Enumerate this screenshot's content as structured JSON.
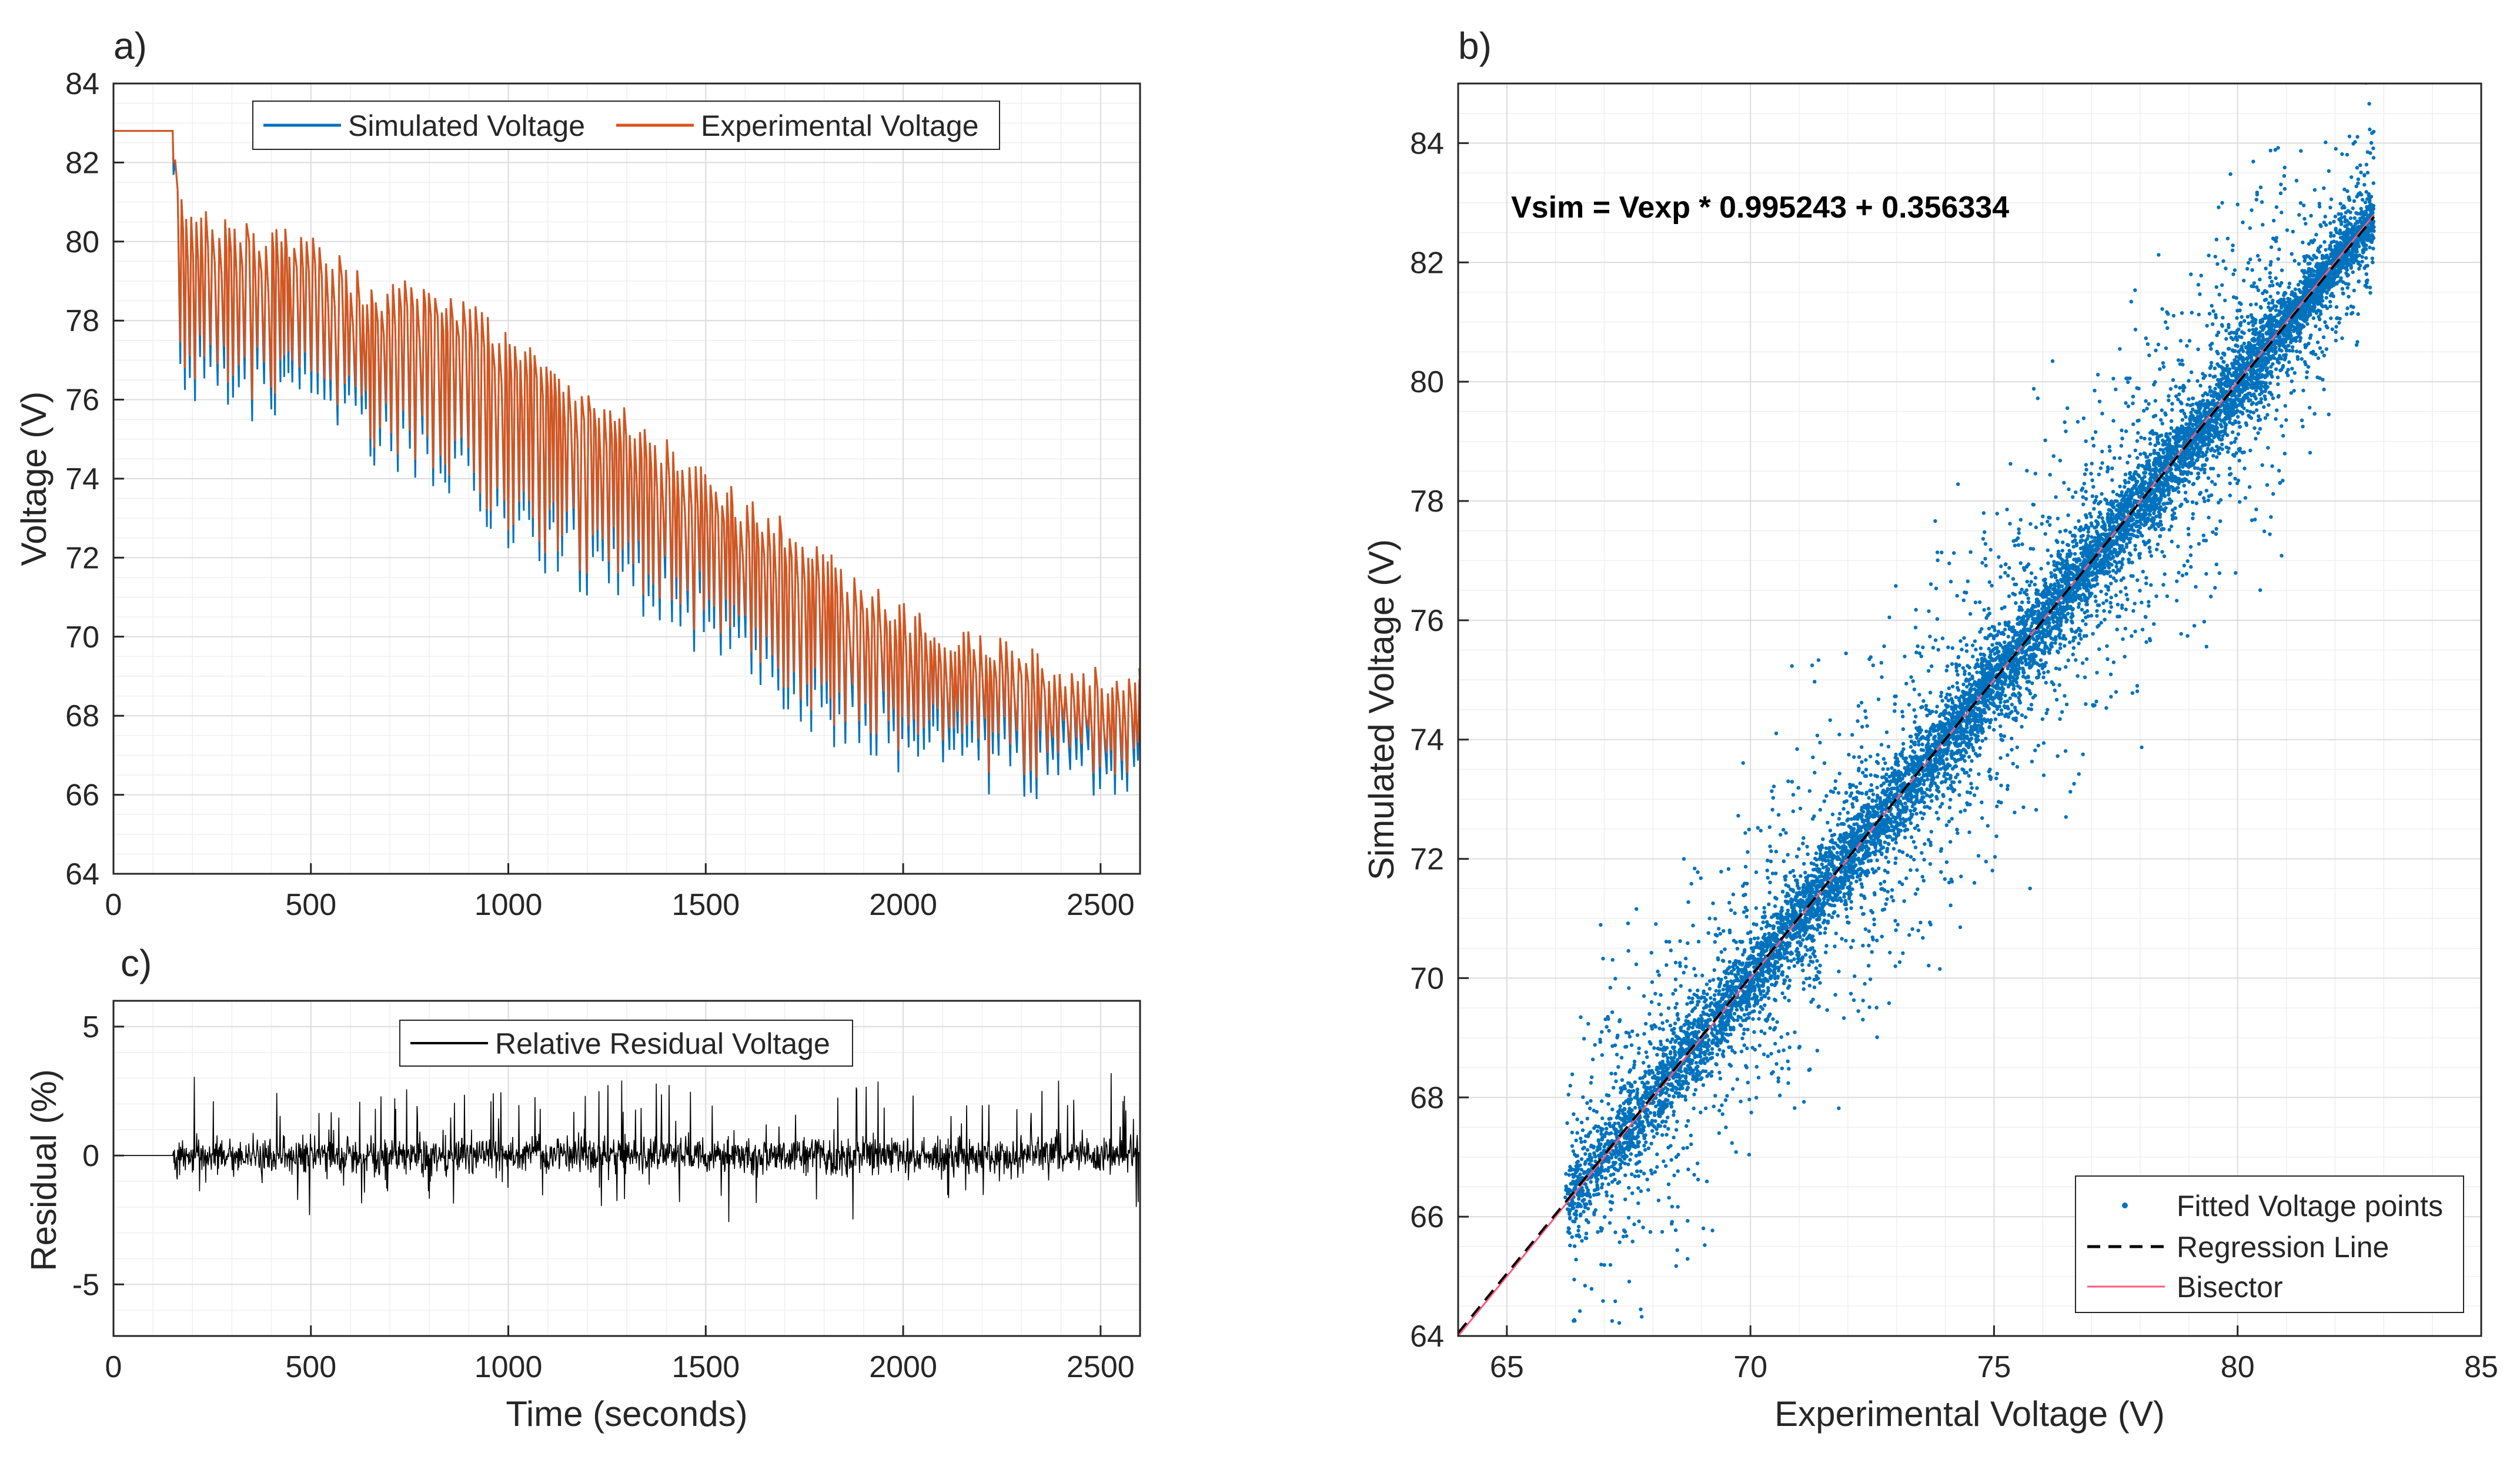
{
  "colors": {
    "simulated": "#0072BD",
    "experimental": "#D95319",
    "residual": "#000000",
    "scatter": "#0072BD",
    "regression": "#000000",
    "bisector": "#FF5A7A",
    "grid_major": "#dcdcdc",
    "grid_minor": "#efefef",
    "axis": "#262626"
  },
  "chart_data": [
    {
      "id": "a",
      "panel_label": "a)",
      "type": "line",
      "xlabel": "",
      "ylabel": "Voltage (V)",
      "xlim": [
        0,
        2600
      ],
      "ylim": [
        64,
        84
      ],
      "xticks": [
        0,
        500,
        1000,
        1500,
        2000,
        2500
      ],
      "yticks": [
        64,
        66,
        68,
        70,
        72,
        74,
        76,
        78,
        80,
        82,
        84
      ],
      "grid": true,
      "minor_grid": true,
      "legend": {
        "placement": "top-center",
        "orientation": "horizontal"
      },
      "series": [
        {
          "name": "Simulated Voltage",
          "color_key": "simulated",
          "description_points": {
            "x": [
              0,
              150,
              155,
              160,
              300,
              500,
              650,
              800,
              1000,
              1200,
              1400,
              1500,
              1700,
              1900,
              2100,
              2300,
              2500,
              2590
            ],
            "upper": [
              82.8,
              82.8,
              82.0,
              81.3,
              80.6,
              80.2,
              79.0,
              79.2,
              77.8,
              76.5,
              75.0,
              74.2,
              73.0,
              71.5,
              70.4,
              69.8,
              69.3,
              69.2
            ],
            "lower": [
              82.8,
              82.8,
              77.0,
              76.0,
              75.3,
              75.1,
              74.3,
              73.8,
              72.0,
              71.0,
              70.1,
              69.4,
              67.8,
              66.8,
              66.1,
              65.9,
              65.6,
              65.4
            ]
          }
        },
        {
          "name": "Experimental Voltage",
          "color_key": "experimental",
          "description_points": {
            "x": [
              0,
              150,
              155,
              160,
              300,
              500,
              650,
              800,
              1000,
              1200,
              1400,
              1500,
              1700,
              1900,
              2100,
              2300,
              2500,
              2590
            ],
            "upper": [
              82.8,
              82.8,
              82.0,
              81.3,
              80.6,
              80.2,
              79.0,
              79.2,
              77.8,
              76.5,
              75.0,
              74.2,
              73.0,
              71.5,
              70.4,
              69.8,
              69.3,
              69.2
            ],
            "lower": [
              82.8,
              82.8,
              77.2,
              76.3,
              75.6,
              75.4,
              74.5,
              74.0,
              72.2,
              71.3,
              70.4,
              69.7,
              68.1,
              67.1,
              66.4,
              66.2,
              65.9,
              65.6
            ]
          }
        }
      ]
    },
    {
      "id": "c",
      "panel_label": "c)",
      "type": "line",
      "xlabel": "Time (seconds)",
      "ylabel": "Residual (%)",
      "xlim": [
        0,
        2600
      ],
      "ylim": [
        -7,
        6
      ],
      "xticks": [
        0,
        500,
        1000,
        1500,
        2000,
        2500
      ],
      "yticks": [
        -5,
        0,
        5
      ],
      "grid": true,
      "minor_grid": true,
      "legend": {
        "placement": "top-center"
      },
      "series": [
        {
          "name": "Relative Residual Voltage",
          "color_key": "residual",
          "description_points": {
            "x": [
              0,
              150,
              160,
              300,
              500,
              700,
              900,
              1100,
              1300,
              1500,
              1700,
              1900,
              2100,
              2300,
              2500,
              2590
            ],
            "max": [
              0,
              0,
              3.7,
              2.8,
              2.5,
              2.6,
              2.7,
              2.8,
              3.0,
              2.6,
              3.2,
              3.0,
              3.1,
              2.9,
              3.3,
              3.0
            ],
            "min": [
              0,
              0,
              -1.8,
              -1.5,
              -3.0,
              -1.5,
              -2.0,
              -2.3,
              -1.7,
              -3.0,
              -2.0,
              -3.0,
              -2.0,
              -1.6,
              -1.6,
              -2.2
            ]
          }
        }
      ]
    },
    {
      "id": "b",
      "panel_label": "b)",
      "type": "scatter",
      "xlabel": "Experimental Voltage (V)",
      "ylabel": "Simulated Voltage (V)",
      "xlim": [
        64,
        85
      ],
      "ylim": [
        64,
        85
      ],
      "xticks": [
        65,
        70,
        75,
        80,
        85
      ],
      "yticks": [
        64,
        66,
        68,
        70,
        72,
        74,
        76,
        78,
        80,
        82,
        84
      ],
      "grid": true,
      "minor_grid": true,
      "annotation": "Vsim = Vexp * 0.995243 + 0.356334",
      "regression": {
        "slope": 0.995243,
        "intercept": 0.356334
      },
      "legend": {
        "placement": "bottom-right"
      },
      "series": [
        {
          "name": "Fitted Voltage points",
          "color_key": "scatter",
          "x_range": [
            65.3,
            82.8
          ],
          "description": "dense cloud of points around the regression line"
        },
        {
          "name": "Regression Line",
          "color_key": "regression",
          "style": "dashed",
          "x_range": [
            64,
            82.8
          ]
        },
        {
          "name": "Bisector",
          "color_key": "bisector",
          "style": "solid",
          "x_range": [
            64,
            82.8
          ]
        }
      ]
    }
  ]
}
